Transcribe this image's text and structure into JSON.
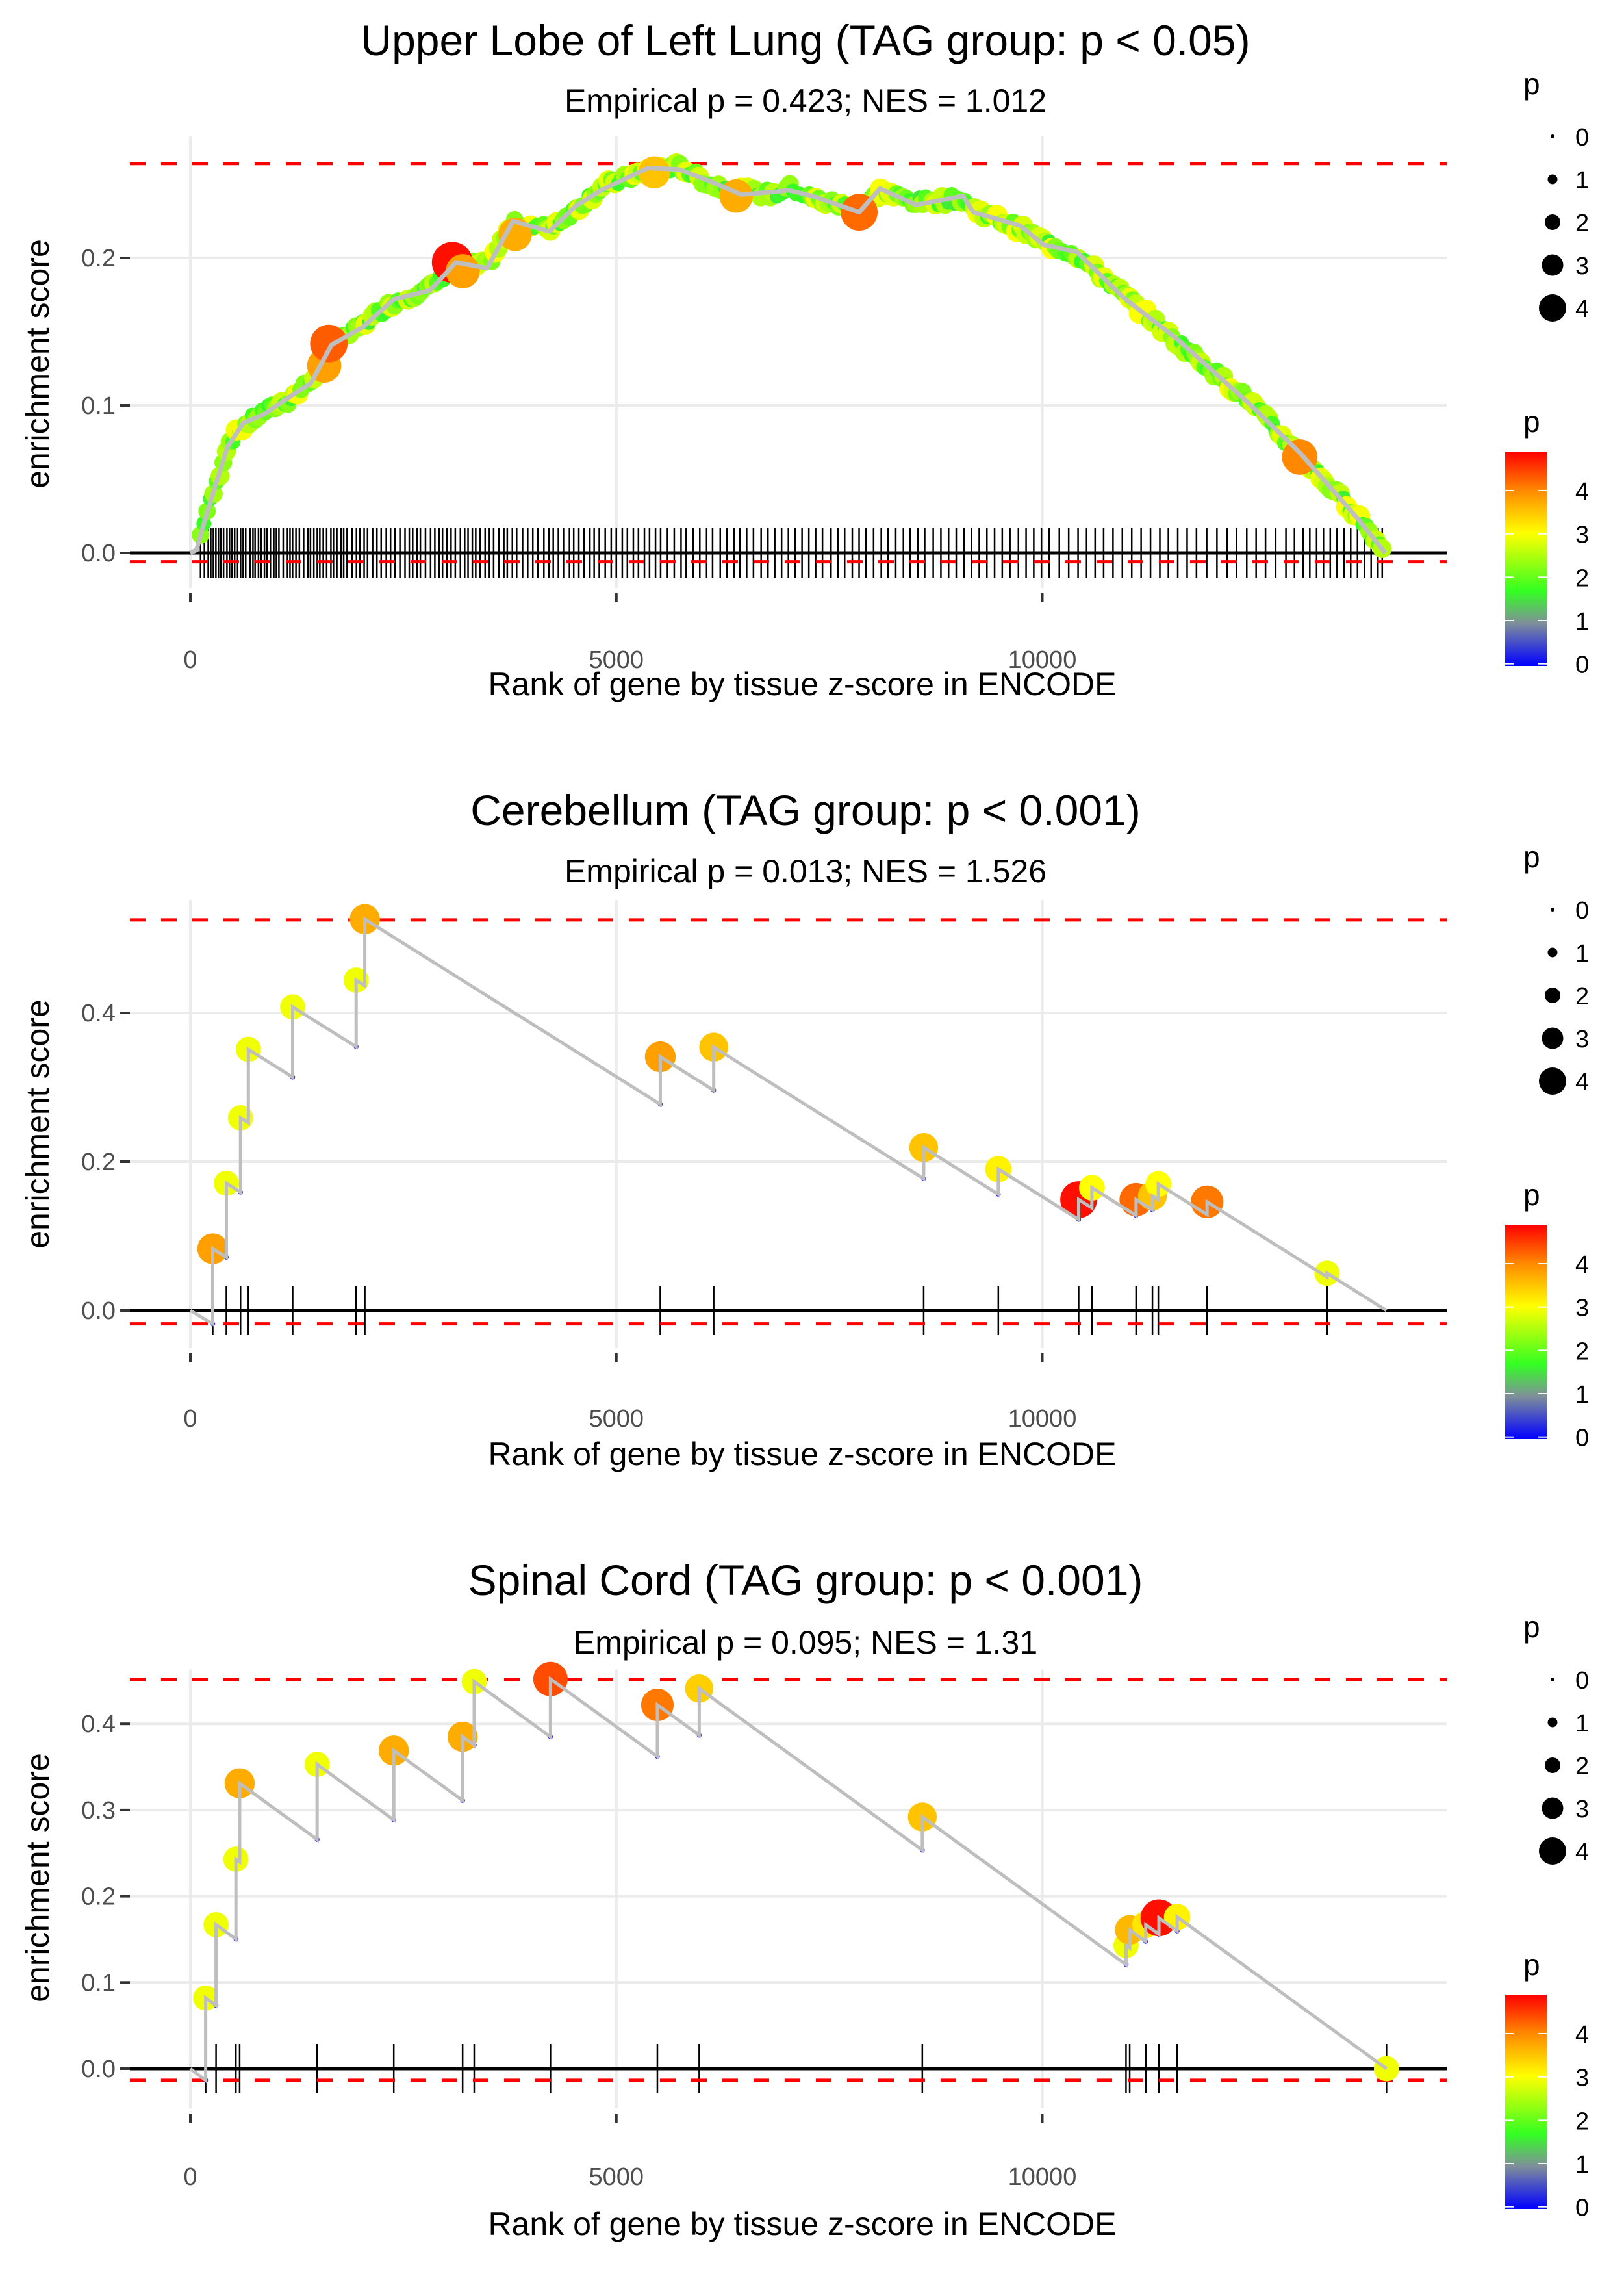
{
  "chart_data": [
    {
      "type": "line",
      "subtype": "gsea-enrichment",
      "title": "Upper Lobe of Left Lung (TAG group: p < 0.05)",
      "subtitle": "Empirical p = 0.423; NES = 1.012",
      "xlabel": "Rank of gene by tissue z-score in ENCODE",
      "ylabel": "enrichment score",
      "xlim": [
        -710,
        14750
      ],
      "ylim": [
        -0.022,
        0.282
      ],
      "x_ticks": [
        0,
        5000,
        10000
      ],
      "x_tick_labels": [
        "0",
        "5000",
        "10000"
      ],
      "y_ticks": [
        0.0,
        0.1,
        0.2
      ],
      "y_tick_labels": [
        "0.0",
        "0.1",
        "0.2"
      ],
      "max_es_line": 0.264,
      "min_es_line": -0.006,
      "grid": true,
      "dense_gene_points": true,
      "curve": {
        "x": [
          0,
          73,
          164,
          317,
          438,
          621,
          865,
          1169,
          1413,
          1656,
          2022,
          2387,
          2814,
          3118,
          3483,
          3788,
          4214,
          4519,
          4823,
          5371,
          5737,
          6102,
          6468,
          6894,
          7016,
          7303,
          7851,
          8095,
          8521,
          9069,
          9191,
          9738,
          10012,
          10407,
          10955,
          11563,
          12414,
          13022,
          13691,
          14025
        ],
        "y": [
          0,
          0,
          0.023,
          0.048,
          0.074,
          0.086,
          0.096,
          0.104,
          0.117,
          0.139,
          0.155,
          0.17,
          0.18,
          0.195,
          0.195,
          0.223,
          0.22,
          0.233,
          0.248,
          0.259,
          0.262,
          0.25,
          0.245,
          0.243,
          0.248,
          0.24,
          0.233,
          0.245,
          0.238,
          0.24,
          0.233,
          0.22,
          0.211,
          0.202,
          0.175,
          0.144,
          0.104,
          0.066,
          0.026,
          0.0
        ]
      },
      "highlight_points": [
        {
          "x": 1571,
          "y": 0.127,
          "p": 3.9
        },
        {
          "x": 1626,
          "y": 0.142,
          "p": 4.4
        },
        {
          "x": 3075,
          "y": 0.197,
          "p": 4.9
        },
        {
          "x": 3197,
          "y": 0.191,
          "p": 3.9
        },
        {
          "x": 3812,
          "y": 0.216,
          "p": 3.8
        },
        {
          "x": 5444,
          "y": 0.258,
          "p": 3.6
        },
        {
          "x": 6407,
          "y": 0.242,
          "p": 3.8
        },
        {
          "x": 7851,
          "y": 0.231,
          "p": 4.3
        },
        {
          "x": 13022,
          "y": 0.065,
          "p": 4.1
        }
      ],
      "rug_x": [
        120,
        165,
        210,
        240,
        270,
        300,
        330,
        360,
        390,
        430,
        460,
        490,
        520,
        555,
        590,
        620,
        650,
        700,
        735,
        760,
        800,
        830,
        870,
        900,
        940,
        980,
        1010,
        1040,
        1090,
        1140,
        1170,
        1200,
        1240,
        1280,
        1330,
        1380,
        1410,
        1450,
        1490,
        1520,
        1560,
        1600,
        1650,
        1680,
        1720,
        1770,
        1800,
        1840,
        1900,
        1950,
        1990,
        2040,
        2080,
        2140,
        2190,
        2240,
        2300,
        2350,
        2400,
        2460,
        2520,
        2570,
        2610,
        2660,
        2700,
        2760,
        2820,
        2870,
        2920,
        2960,
        3010,
        3060,
        3110,
        3170,
        3220,
        3260,
        3310,
        3350,
        3400,
        3460,
        3510,
        3560,
        3620,
        3680,
        3720,
        3780,
        3830,
        3900,
        3960,
        4020,
        4080,
        4150,
        4210,
        4260,
        4320,
        4380,
        4450,
        4500,
        4560,
        4620,
        4690,
        4740,
        4800,
        4870,
        4940,
        5000,
        5070,
        5130,
        5200,
        5260,
        5330,
        5390,
        5460,
        5520,
        5600,
        5680,
        5760,
        5820,
        5900,
        5980,
        6060,
        6130,
        6220,
        6300,
        6380,
        6450,
        6530,
        6610,
        6700,
        6780,
        6860,
        6940,
        7020,
        7100,
        7180,
        7260,
        7340,
        7420,
        7520,
        7600,
        7680,
        7770,
        7850,
        7930,
        8020,
        8110,
        8190,
        8280,
        8370,
        8450,
        8540,
        8620,
        8720,
        8810,
        8900,
        8990,
        9080,
        9170,
        9260,
        9350,
        9440,
        9530,
        9620,
        9720,
        9810,
        9900,
        9990,
        10080,
        10200,
        10310,
        10420,
        10520,
        10620,
        10720,
        10830,
        10940,
        11050,
        11160,
        11270,
        11380,
        11480,
        11590,
        11700,
        11810,
        11930,
        12050,
        12170,
        12280,
        12400,
        12510,
        12620,
        12740,
        12860,
        12960,
        13060,
        13140,
        13220,
        13300,
        13380,
        13460,
        13540,
        13620,
        13700,
        13780,
        13860,
        13940,
        13990
      ]
    },
    {
      "type": "line",
      "subtype": "gsea-enrichment",
      "title": "Cerebellum (TAG group: p < 0.001)",
      "subtitle": "Empirical p = 0.013; NES = 1.526",
      "xlabel": "Rank of gene by tissue z-score in ENCODE",
      "ylabel": "enrichment score",
      "xlim": [
        -710,
        14750
      ],
      "ylim": [
        -0.05,
        0.555
      ],
      "x_ticks": [
        0,
        5000,
        10000
      ],
      "x_tick_labels": [
        "0",
        "5000",
        "10000"
      ],
      "y_ticks": [
        0.0,
        0.2,
        0.4
      ],
      "y_tick_labels": [
        "0.0",
        "0.2",
        "0.4"
      ],
      "max_es_line": 0.525,
      "min_es_line": -0.018,
      "grid": true,
      "dense_gene_points": false,
      "end_x": 14040,
      "points": [
        {
          "x": 263,
          "y": 0.083,
          "p": 3.9
        },
        {
          "x": 423,
          "y": 0.171,
          "p": 3.0
        },
        {
          "x": 589,
          "y": 0.259,
          "p": 3.0
        },
        {
          "x": 681,
          "y": 0.351,
          "p": 3.0
        },
        {
          "x": 1201,
          "y": 0.408,
          "p": 3.0
        },
        {
          "x": 1946,
          "y": 0.444,
          "p": 3.0
        },
        {
          "x": 2048,
          "y": 0.526,
          "p": 3.8
        },
        {
          "x": 5516,
          "y": 0.341,
          "p": 3.9
        },
        {
          "x": 6143,
          "y": 0.354,
          "p": 3.6
        },
        {
          "x": 8608,
          "y": 0.219,
          "p": 3.6
        },
        {
          "x": 9484,
          "y": 0.19,
          "p": 3.2
        },
        {
          "x": 10427,
          "y": 0.149,
          "p": 4.9
        },
        {
          "x": 10582,
          "y": 0.165,
          "p": 3.1
        },
        {
          "x": 11101,
          "y": 0.149,
          "p": 4.3
        },
        {
          "x": 11293,
          "y": 0.154,
          "p": 3.6
        },
        {
          "x": 11362,
          "y": 0.17,
          "p": 3.1
        },
        {
          "x": 11934,
          "y": 0.146,
          "p": 4.2
        },
        {
          "x": 13343,
          "y": 0.05,
          "p": 3.0
        }
      ]
    },
    {
      "type": "line",
      "subtype": "gsea-enrichment",
      "title": "Spinal Cord (TAG group: p < 0.001)",
      "subtitle": "Empirical p = 0.095; NES = 1.31",
      "xlabel": "Rank of gene by tissue z-score in ENCODE",
      "ylabel": "enrichment score",
      "xlim": [
        -710,
        14750
      ],
      "ylim": [
        -0.046,
        0.463
      ],
      "x_ticks": [
        0,
        5000,
        10000
      ],
      "x_tick_labels": [
        "0",
        "5000",
        "10000"
      ],
      "y_ticks": [
        0.0,
        0.1,
        0.2,
        0.3,
        0.4
      ],
      "y_tick_labels": [
        "0.0",
        "0.1",
        "0.2",
        "0.3",
        "0.4"
      ],
      "max_es_line": 0.451,
      "min_es_line": -0.0135,
      "grid": true,
      "dense_gene_points": false,
      "end_x": 14040,
      "points": [
        {
          "x": 180,
          "y": 0.082,
          "p": 3.0
        },
        {
          "x": 302,
          "y": 0.167,
          "p": 3.0
        },
        {
          "x": 535,
          "y": 0.243,
          "p": 3.0
        },
        {
          "x": 579,
          "y": 0.331,
          "p": 3.8
        },
        {
          "x": 1488,
          "y": 0.353,
          "p": 3.0
        },
        {
          "x": 2388,
          "y": 0.369,
          "p": 3.8
        },
        {
          "x": 3196,
          "y": 0.385,
          "p": 3.8
        },
        {
          "x": 3332,
          "y": 0.449,
          "p": 3.0
        },
        {
          "x": 4227,
          "y": 0.452,
          "p": 4.5
        },
        {
          "x": 5482,
          "y": 0.422,
          "p": 4.2
        },
        {
          "x": 5973,
          "y": 0.441,
          "p": 3.5
        },
        {
          "x": 8592,
          "y": 0.292,
          "p": 3.6
        },
        {
          "x": 10983,
          "y": 0.143,
          "p": 3.0
        },
        {
          "x": 11026,
          "y": 0.161,
          "p": 3.7
        },
        {
          "x": 11214,
          "y": 0.167,
          "p": 3.3
        },
        {
          "x": 11369,
          "y": 0.175,
          "p": 4.9
        },
        {
          "x": 11583,
          "y": 0.176,
          "p": 3.2
        },
        {
          "x": 14040,
          "y": 0.0,
          "p": 3.0
        }
      ]
    }
  ],
  "legend": {
    "size_title": "p",
    "size_labels": [
      "0",
      "1",
      "2",
      "3",
      "4"
    ],
    "color_title": "p",
    "color_labels": [
      "4",
      "3",
      "2",
      "1",
      "0"
    ],
    "colorbar_stops": [
      "#0000ff",
      "#7f8f99",
      "#33ff22",
      "#ffff00",
      "#ff8800",
      "#ff0000"
    ]
  },
  "colors": {
    "max_line": "#ff0000",
    "running_line": "#bebebe",
    "grid": "#ebebeb",
    "rug": "#000000"
  }
}
